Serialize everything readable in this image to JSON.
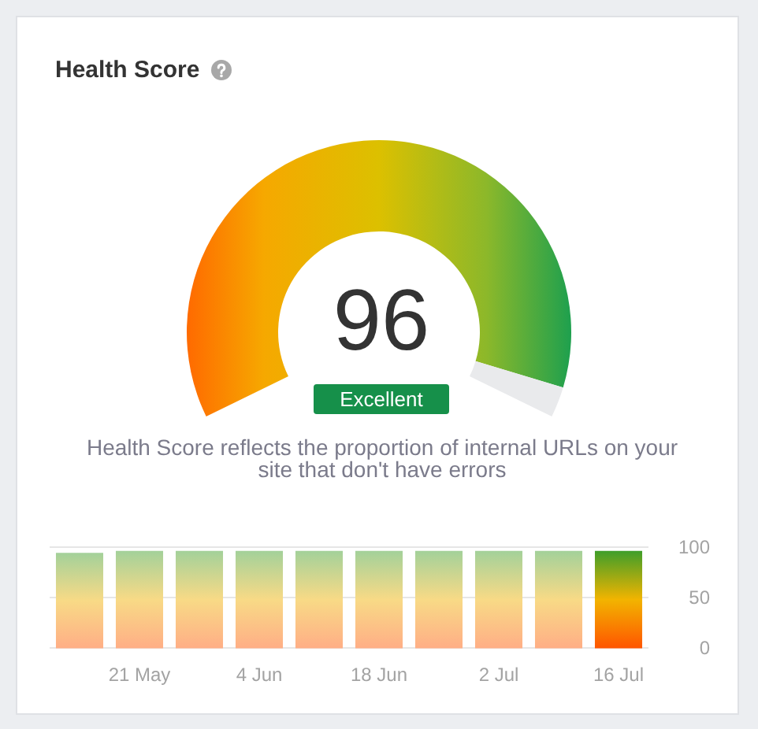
{
  "chart_data": [
    {
      "type": "donut",
      "title": "Health Score",
      "categories": [
        null,
        null
      ],
      "values": [
        96,
        4
      ],
      "colors": [
        "#dcc000",
        "#e9eaec"
      ],
      "annotations": [
        "96",
        "Excellent",
        "Health Score reflects the proportion of internal URLs on your site that don't have errors"
      ]
    },
    {
      "type": "bar",
      "categories": [
        null,
        "21 May",
        null,
        "4 Jun",
        null,
        "18 Jun",
        null,
        "2 Jul",
        null,
        "16 Jul"
      ],
      "values": [
        94,
        96,
        96,
        96,
        96,
        96,
        96,
        96,
        96,
        96
      ],
      "colors": [
        "#f8da86",
        "#f8da86",
        "#f8da86",
        "#f8da86",
        "#f8da86",
        "#f8da86",
        "#f8da86",
        "#f8da86",
        "#f8da86",
        "#f2b400"
      ],
      "ylim": [
        0,
        100
      ],
      "yticks": [
        0,
        50,
        100
      ],
      "grid": "y"
    }
  ]
}
